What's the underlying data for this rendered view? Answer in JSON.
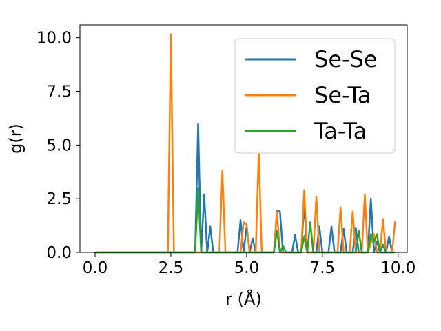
{
  "chart_data": {
    "type": "line",
    "title": "",
    "xlabel": "r (Å)",
    "ylabel": "g(r)",
    "xlim": [
      -0.5,
      10.3
    ],
    "ylim": [
      0,
      10.6
    ],
    "x_ticks": [
      0.0,
      2.5,
      5.0,
      7.5,
      10.0
    ],
    "x_tick_labels": [
      "0.0",
      "2.5",
      "5.0",
      "7.5",
      "10.0"
    ],
    "y_ticks": [
      0.0,
      2.5,
      5.0,
      7.5,
      10.0
    ],
    "y_tick_labels": [
      "0.0",
      "2.5",
      "5.0",
      "7.5",
      "10.0"
    ],
    "grid": false,
    "legend_position": "top-right",
    "series": [
      {
        "name": "Se-Se",
        "color": "#1f77b4",
        "points": [
          [
            0.0,
            0.0
          ],
          [
            3.3,
            0.0
          ],
          [
            3.4,
            6.0
          ],
          [
            3.5,
            0.0
          ],
          [
            3.6,
            2.7
          ],
          [
            3.7,
            0.0
          ],
          [
            3.8,
            1.2
          ],
          [
            3.9,
            0.0
          ],
          [
            4.7,
            0.0
          ],
          [
            4.8,
            1.5
          ],
          [
            4.9,
            0.0
          ],
          [
            5.0,
            1.2
          ],
          [
            5.1,
            0.0
          ],
          [
            5.2,
            0.65
          ],
          [
            5.3,
            0.0
          ],
          [
            5.9,
            0.0
          ],
          [
            6.0,
            1.95
          ],
          [
            6.1,
            1.9
          ],
          [
            6.2,
            0.0
          ],
          [
            6.5,
            0.0
          ],
          [
            6.6,
            0.8
          ],
          [
            6.7,
            0.0
          ],
          [
            6.8,
            0.0
          ],
          [
            6.9,
            2.25
          ],
          [
            7.0,
            0.0
          ],
          [
            7.3,
            0.0
          ],
          [
            7.4,
            1.2
          ],
          [
            7.5,
            0.0
          ],
          [
            7.7,
            0.0
          ],
          [
            7.8,
            1.2
          ],
          [
            7.9,
            0.0
          ],
          [
            8.1,
            0.0
          ],
          [
            8.2,
            1.1
          ],
          [
            8.3,
            0.0
          ],
          [
            8.5,
            0.0
          ],
          [
            8.6,
            1.15
          ],
          [
            8.7,
            0.0
          ],
          [
            9.0,
            0.0
          ],
          [
            9.1,
            2.5
          ],
          [
            9.2,
            0.0
          ],
          [
            9.3,
            0.5
          ],
          [
            9.4,
            0.0
          ],
          [
            9.6,
            0.0
          ],
          [
            9.7,
            0.75
          ],
          [
            9.8,
            0.0
          ]
        ]
      },
      {
        "name": "Se-Ta",
        "color": "#ff7f0e",
        "points": [
          [
            0.0,
            0.0
          ],
          [
            2.4,
            0.0
          ],
          [
            2.5,
            10.15
          ],
          [
            2.6,
            0.0
          ],
          [
            4.1,
            0.0
          ],
          [
            4.2,
            3.8
          ],
          [
            4.3,
            0.0
          ],
          [
            4.8,
            0.0
          ],
          [
            4.9,
            1.4
          ],
          [
            5.0,
            1.3
          ],
          [
            5.1,
            0.0
          ],
          [
            5.3,
            0.0
          ],
          [
            5.4,
            4.7
          ],
          [
            5.5,
            0.0
          ],
          [
            5.9,
            0.0
          ],
          [
            6.0,
            1.9
          ],
          [
            6.1,
            0.0
          ],
          [
            6.8,
            0.0
          ],
          [
            6.9,
            2.9
          ],
          [
            7.0,
            0.0
          ],
          [
            7.2,
            0.0
          ],
          [
            7.3,
            2.6
          ],
          [
            7.4,
            0.0
          ],
          [
            8.0,
            0.0
          ],
          [
            8.1,
            2.1
          ],
          [
            8.2,
            0.0
          ],
          [
            8.4,
            0.0
          ],
          [
            8.5,
            1.9
          ],
          [
            8.6,
            0.0
          ],
          [
            8.8,
            0.0
          ],
          [
            8.9,
            2.7
          ],
          [
            9.0,
            0.0
          ],
          [
            9.2,
            0.85
          ],
          [
            9.3,
            0.0
          ],
          [
            9.4,
            0.0
          ],
          [
            9.5,
            1.55
          ],
          [
            9.6,
            0.0
          ],
          [
            9.8,
            0.0
          ],
          [
            9.9,
            1.45
          ]
        ]
      },
      {
        "name": "Ta-Ta",
        "color": "#2ca02c",
        "points": [
          [
            0.0,
            0.0
          ],
          [
            3.3,
            0.0
          ],
          [
            3.4,
            3.0
          ],
          [
            3.5,
            0.0
          ],
          [
            5.9,
            0.0
          ],
          [
            6.0,
            1.0
          ],
          [
            6.1,
            0.0
          ],
          [
            6.2,
            0.3
          ],
          [
            6.3,
            0.0
          ],
          [
            6.8,
            0.0
          ],
          [
            6.9,
            0.75
          ],
          [
            7.0,
            0.0
          ],
          [
            7.1,
            1.4
          ],
          [
            7.2,
            0.0
          ],
          [
            8.6,
            0.0
          ],
          [
            8.7,
            1.0
          ],
          [
            8.8,
            0.0
          ],
          [
            9.0,
            0.0
          ],
          [
            9.1,
            0.85
          ],
          [
            9.2,
            0.5
          ],
          [
            9.3,
            0.85
          ],
          [
            9.4,
            0.0
          ],
          [
            9.5,
            0.35
          ],
          [
            9.6,
            0.0
          ],
          [
            9.9,
            0.0
          ]
        ]
      }
    ]
  }
}
